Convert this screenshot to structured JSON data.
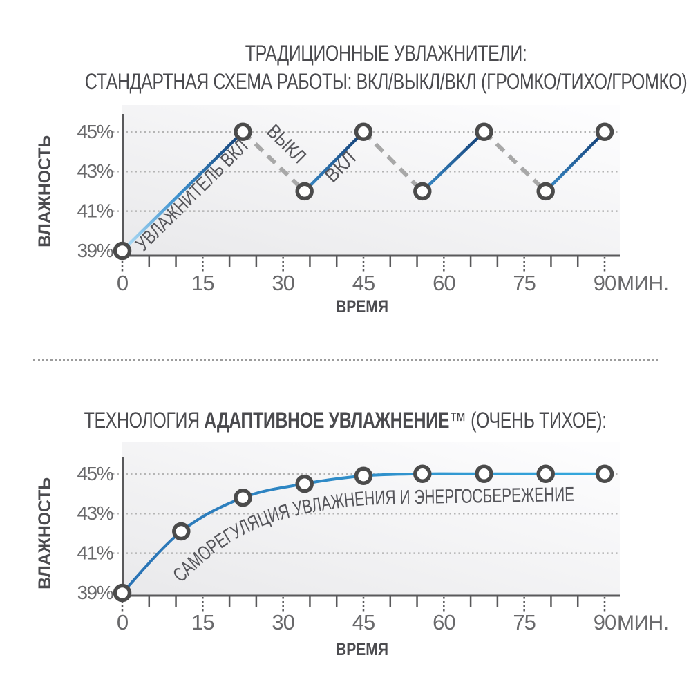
{
  "page": {
    "background": "#ffffff"
  },
  "header1": {
    "line1": "ТРАДИЦИОННЫЕ УВЛАЖНИТЕЛИ:",
    "line2": "СТАНДАРТНАЯ СХЕМА РАБОТЫ: ВКЛ/ВЫКЛ/ВКЛ (ГРОМКО/ТИХО/ГРОМКО)"
  },
  "header2": {
    "prefix": "ТЕХНОЛОГИЯ ",
    "bold": "АДАПТИВНОЕ УВЛАЖНЕНИЕ",
    "tm": "™",
    "suffix": " (ОЧЕНЬ ТИХОЕ):"
  },
  "chart_data": [
    {
      "type": "line",
      "title": "ТРАДИЦИОННЫЕ УВЛАЖНИТЕЛИ: СТАНДАРТНАЯ СХЕМА РАБОТЫ: ВКЛ/ВЫКЛ/ВКЛ (ГРОМКО/ТИХО/ГРОМКО)",
      "xlabel": "ВРЕМЯ",
      "ylabel": "ВЛАЖНОСТЬ",
      "x_unit": "МИН.",
      "xlim": [
        0,
        90
      ],
      "ylim": [
        39,
        45
      ],
      "x_ticks": [
        0,
        15,
        30,
        45,
        60,
        75,
        90
      ],
      "minor_x_step": 5,
      "y_ticks": [
        45,
        43,
        41,
        39
      ],
      "y_tick_suffix": "%",
      "grid": "dotted-horizontal",
      "series": [
        {
          "name": "влажность",
          "points": [
            [
              0,
              39
            ],
            [
              22.5,
              45
            ],
            [
              34,
              42
            ],
            [
              45,
              45
            ],
            [
              56,
              42
            ],
            [
              67.5,
              45
            ],
            [
              79,
              42
            ],
            [
              90,
              45
            ]
          ],
          "segment_states": [
            "on",
            "off",
            "on",
            "off",
            "on",
            "off",
            "on"
          ]
        }
      ],
      "annotations": [
        {
          "text": "УВЛАЖНИТЕЛЬ ВКЛ",
          "attach": "first-rising-segment"
        },
        {
          "text": "ВЫКЛ",
          "attach": "first-falling-segment"
        },
        {
          "text": "ВКЛ",
          "attach": "second-rising-segment"
        }
      ],
      "colors": {
        "on_gradient": [
          "#b9e2f8",
          "#3e93d0",
          "#133e75"
        ],
        "off_dash": "#a8a8a8",
        "marker_fill": "#ffffff",
        "marker_stroke": "#4b4b4b",
        "grid": "#b4b4b4",
        "axis": "#59595b",
        "tick_text": "#69696b",
        "axis_title": "#4b4b4f",
        "annotation": "#55555a",
        "plot_bg": [
          "#e9e9eb",
          "#fdfdfe"
        ]
      }
    },
    {
      "type": "line",
      "title": "ТЕХНОЛОГИЯ АДАПТИВНОЕ УВЛАЖНЕНИЕ™ (ОЧЕНЬ ТИХОЕ):",
      "xlabel": "ВРЕМЯ",
      "ylabel": "ВЛАЖНОСТЬ",
      "x_unit": "МИН.",
      "xlim": [
        0,
        90
      ],
      "ylim": [
        39,
        45
      ],
      "x_ticks": [
        0,
        15,
        30,
        45,
        60,
        75,
        90
      ],
      "minor_x_step": 5,
      "y_ticks": [
        45,
        43,
        41,
        39
      ],
      "y_tick_suffix": "%",
      "grid": "dotted-horizontal",
      "series": [
        {
          "name": "влажность",
          "points": [
            [
              0,
              39
            ],
            [
              11,
              42.1
            ],
            [
              22.5,
              43.8
            ],
            [
              34,
              44.5
            ],
            [
              45,
              44.9
            ],
            [
              56,
              45
            ],
            [
              67.5,
              45
            ],
            [
              79,
              45
            ],
            [
              90,
              45
            ]
          ]
        }
      ],
      "annotations": [
        {
          "text": "САМОРЕГУЛЯЦИЯ УВЛАЖНЕНИЯ И ЭНЕРГОСБЕРЕЖЕНИЕ",
          "attach": "along-curve"
        }
      ],
      "colors": {
        "curve_gradient": [
          "#2a72b4",
          "#35a9de"
        ],
        "marker_fill": "#ffffff",
        "marker_stroke": "#4b4b4b",
        "grid": "#b4b4b4",
        "axis": "#59595b",
        "tick_text": "#69696b",
        "axis_title": "#4b4b4f",
        "annotation": "#55555a",
        "plot_bg": [
          "#e9e9eb",
          "#fdfdfe"
        ]
      }
    }
  ]
}
